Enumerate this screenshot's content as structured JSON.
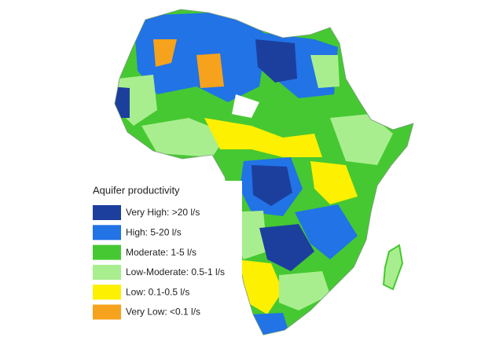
{
  "legend": {
    "title": "Aquifer productivity",
    "items": [
      {
        "label": "Very High: >20 l/s",
        "color": "#1c3f9e"
      },
      {
        "label": "High: 5-20 l/s",
        "color": "#2173e6"
      },
      {
        "label": "Moderate: 1-5 l/s",
        "color": "#46c832"
      },
      {
        "label": "Low-Moderate: 0.5-1 l/s",
        "color": "#a8ee8e"
      },
      {
        "label": "Low: 0.1-0.5 l/s",
        "color": "#fdf000"
      },
      {
        "label": "Very Low: <0.1 l/s",
        "color": "#f6a21c"
      }
    ]
  }
}
